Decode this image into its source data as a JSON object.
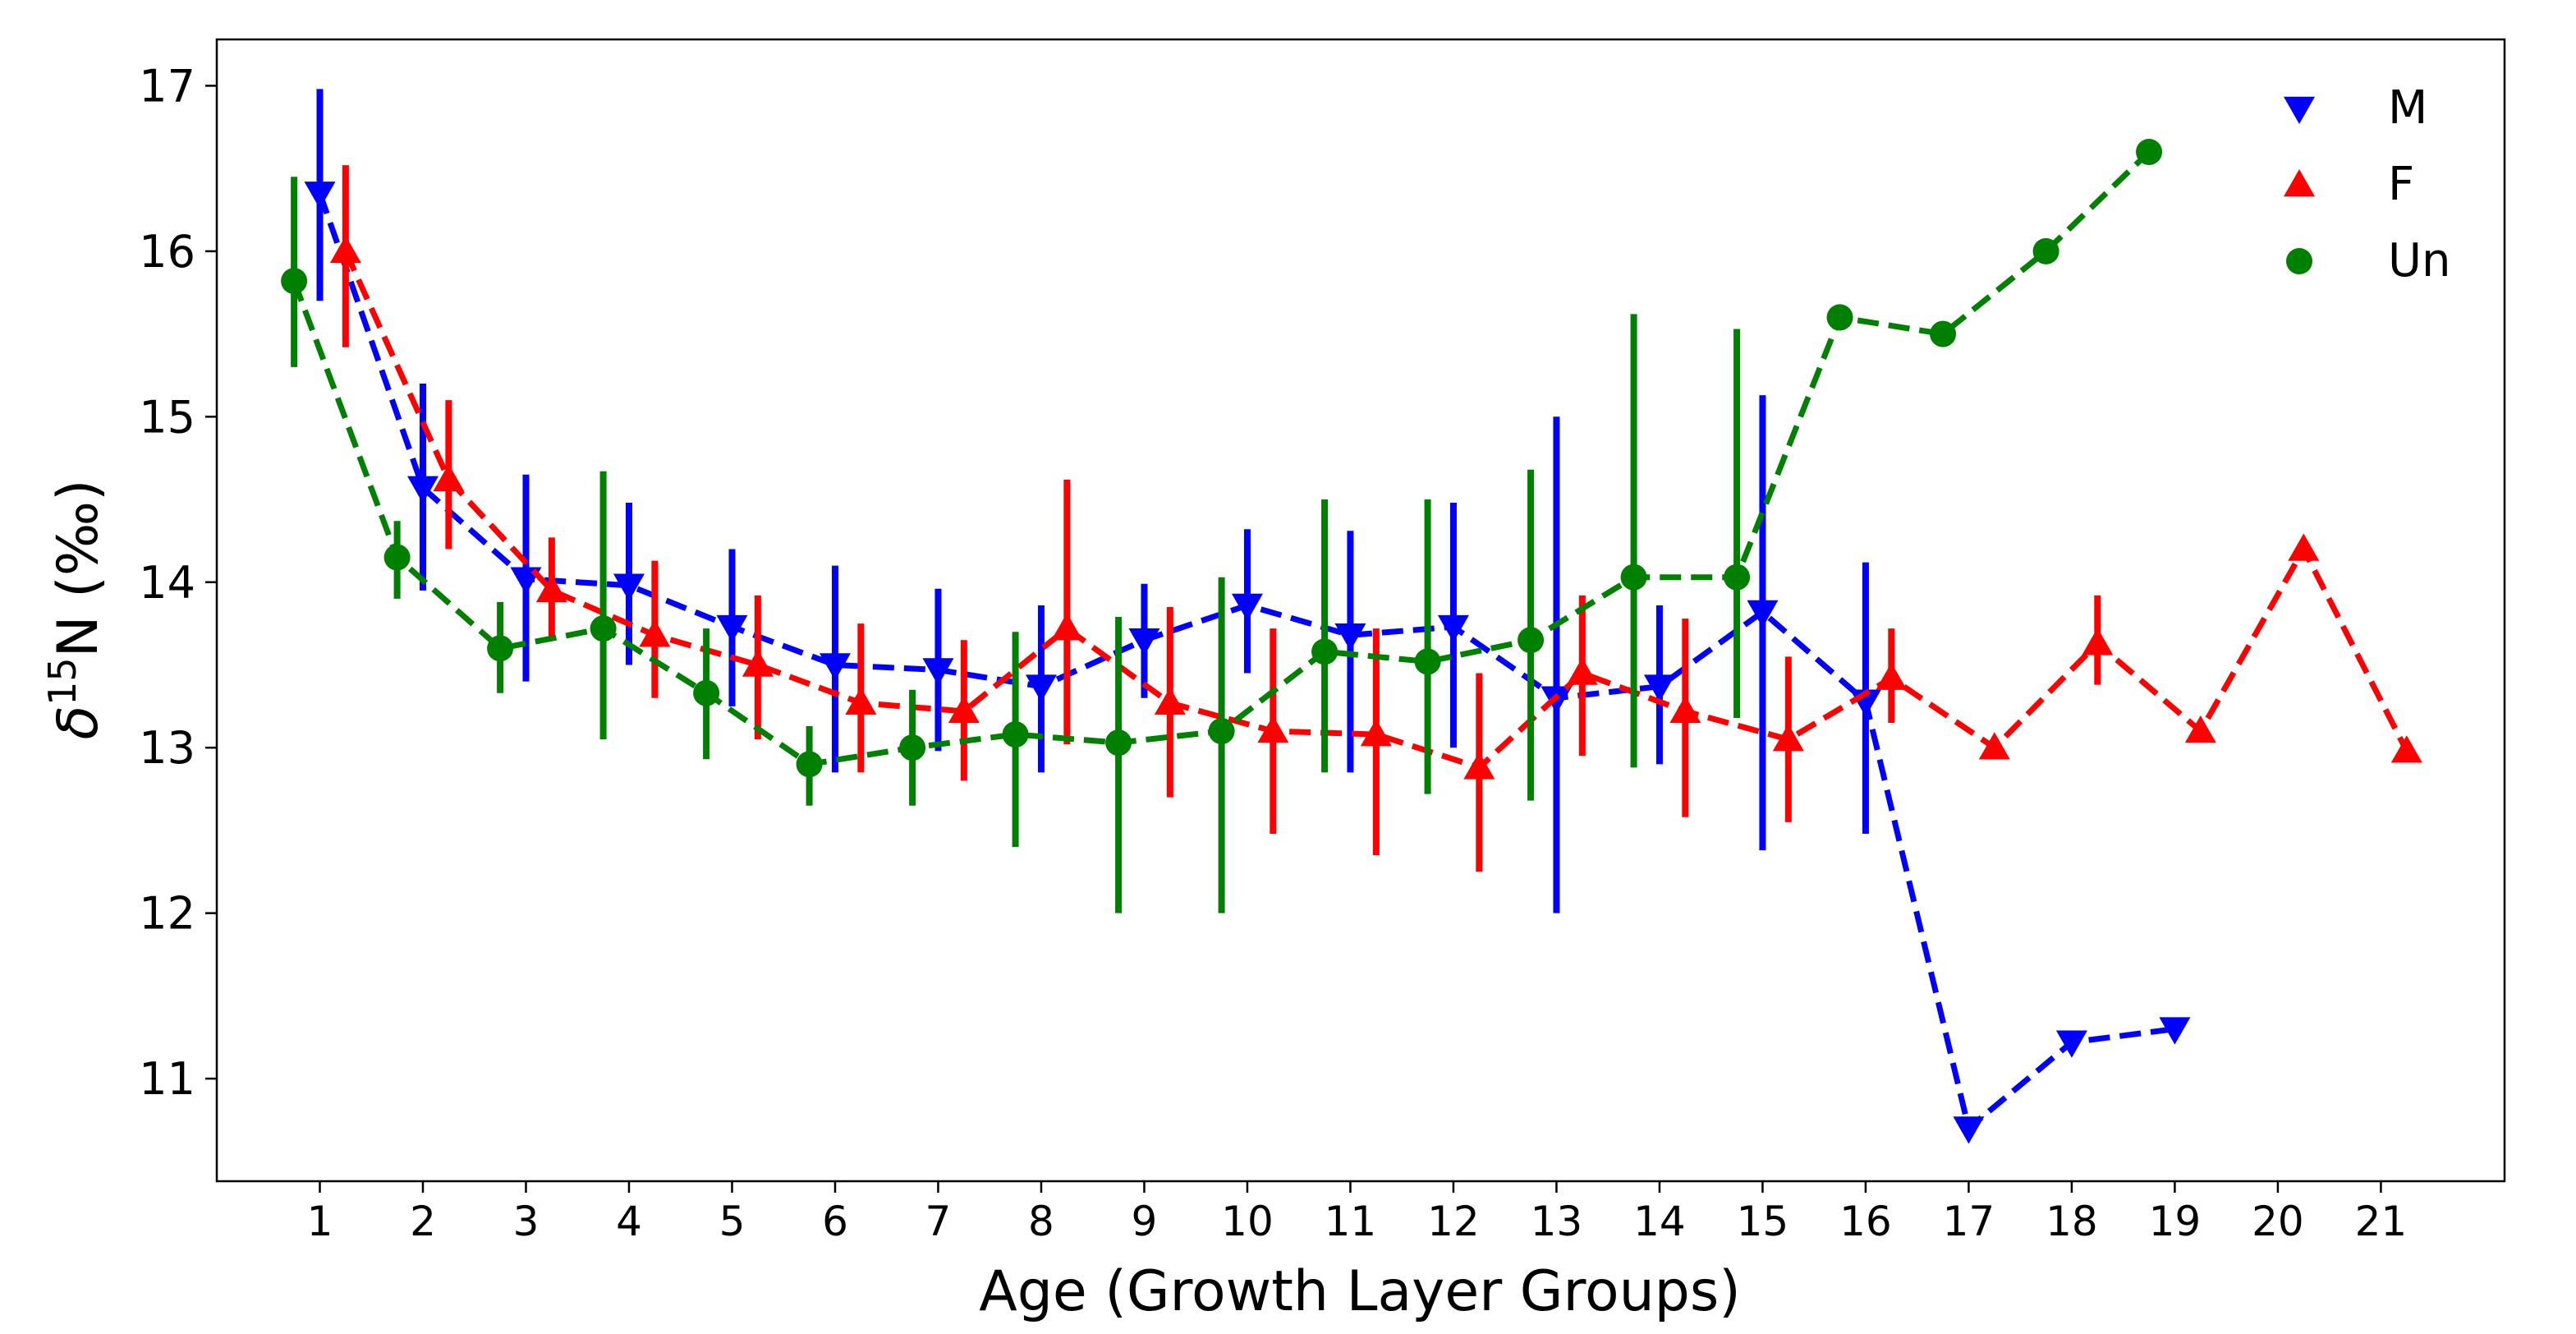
{
  "chart_data": {
    "type": "line",
    "title": "",
    "xlabel": "Age (Growth Layer Groups)",
    "ylabel_parts": [
      "δ",
      "15",
      "N (‰)"
    ],
    "x_ticks": [
      "1",
      "2",
      "3",
      "4",
      "5",
      "6",
      "7",
      "8",
      "9",
      "10",
      "11",
      "12",
      "13",
      "14",
      "15",
      "16",
      "17",
      "18",
      "19",
      "20",
      "21"
    ],
    "y_ticks": [
      "11",
      "12",
      "13",
      "14",
      "15",
      "16",
      "17"
    ],
    "xlim": [
      0,
      22.2
    ],
    "ylim": [
      10.38,
      17.28
    ],
    "grid": false,
    "legend_position": "top-right",
    "series": [
      {
        "name": "M",
        "color": "#0000ff",
        "marker": "triangle-down",
        "x_offset": 0,
        "x": [
          1,
          2,
          3,
          4,
          5,
          6,
          7,
          8,
          9,
          10,
          11,
          12,
          13,
          14,
          15,
          16,
          17,
          18,
          19
        ],
        "y": [
          16.35,
          14.57,
          14.02,
          13.98,
          13.73,
          13.5,
          13.47,
          13.37,
          13.65,
          13.86,
          13.68,
          13.73,
          13.3,
          13.37,
          13.82,
          13.28,
          10.7,
          11.22,
          11.3
        ],
        "err_low": [
          15.7,
          13.95,
          13.4,
          13.5,
          13.25,
          12.85,
          12.98,
          12.85,
          13.3,
          13.45,
          12.85,
          13.0,
          12.0,
          12.9,
          12.38,
          12.48,
          null,
          null,
          null
        ],
        "err_high": [
          16.98,
          15.2,
          14.65,
          14.48,
          14.2,
          14.1,
          13.96,
          13.86,
          13.99,
          14.32,
          14.31,
          14.48,
          15.0,
          13.86,
          15.13,
          14.12,
          null,
          null,
          null
        ]
      },
      {
        "name": "F",
        "color": "#ff0000",
        "marker": "triangle-up",
        "x_offset": 0.25,
        "x": [
          1,
          2,
          3,
          4,
          5,
          6,
          7,
          8,
          9,
          10,
          11,
          12,
          13,
          14,
          15,
          16,
          17,
          18,
          19,
          20,
          21
        ],
        "y": [
          16.0,
          14.62,
          13.95,
          13.68,
          13.5,
          13.27,
          13.22,
          13.72,
          13.27,
          13.1,
          13.08,
          12.88,
          13.45,
          13.22,
          13.05,
          13.42,
          13.0,
          13.63,
          13.1,
          14.2,
          12.98
        ],
        "err_low": [
          15.42,
          14.2,
          13.65,
          13.3,
          13.05,
          12.85,
          12.8,
          13.02,
          12.7,
          12.48,
          12.35,
          12.25,
          12.95,
          12.58,
          12.55,
          13.15,
          null,
          13.38,
          null,
          null,
          null
        ],
        "err_high": [
          16.52,
          15.1,
          14.27,
          14.13,
          13.92,
          13.75,
          13.65,
          14.62,
          13.85,
          13.72,
          13.72,
          13.45,
          13.92,
          13.78,
          13.55,
          13.72,
          null,
          13.92,
          null,
          null,
          null
        ]
      },
      {
        "name": "Un",
        "color": "#008000",
        "marker": "circle",
        "x_offset": -0.25,
        "x": [
          1,
          2,
          3,
          4,
          5,
          6,
          7,
          8,
          9,
          10,
          11,
          12,
          13,
          14,
          15,
          16,
          17,
          18,
          19
        ],
        "y": [
          15.82,
          14.15,
          13.6,
          13.72,
          13.33,
          12.9,
          13.0,
          13.08,
          13.03,
          13.1,
          13.58,
          13.52,
          13.65,
          14.03,
          14.03,
          15.6,
          15.5,
          16.0,
          16.6
        ],
        "err_low": [
          15.3,
          13.9,
          13.33,
          13.05,
          12.93,
          12.65,
          12.65,
          12.4,
          12.0,
          12.0,
          12.85,
          12.72,
          12.68,
          12.88,
          13.18,
          null,
          null,
          null,
          null
        ],
        "err_high": [
          16.45,
          14.37,
          13.88,
          14.67,
          13.72,
          13.13,
          13.35,
          13.7,
          13.79,
          14.03,
          14.5,
          14.5,
          14.68,
          15.62,
          15.53,
          null,
          null,
          null,
          null
        ]
      }
    ]
  }
}
